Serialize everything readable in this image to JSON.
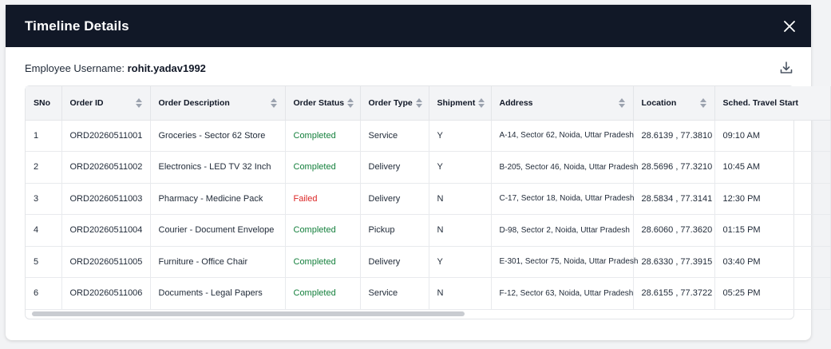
{
  "modal": {
    "title": "Timeline Details"
  },
  "employee": {
    "label": "Employee Username:",
    "username": "rohit.yadav1992"
  },
  "icons": {
    "close": "close-icon",
    "download": "download-icon",
    "sort": "sort-icon"
  },
  "colors": {
    "header_bg": "#111827",
    "completed": "#15803d",
    "failed": "#dc2626"
  },
  "table": {
    "columns": [
      {
        "label": "SNo",
        "sortable": false
      },
      {
        "label": "Order ID",
        "sortable": true
      },
      {
        "label": "Order Description",
        "sortable": true
      },
      {
        "label": "Order Status",
        "sortable": true
      },
      {
        "label": "Order Type",
        "sortable": true
      },
      {
        "label": "Shipment",
        "sortable": true
      },
      {
        "label": "Address",
        "sortable": true
      },
      {
        "label": "Location",
        "sortable": true
      },
      {
        "label": "Sched. Travel Start",
        "sortable": false
      }
    ],
    "rows": [
      {
        "sno": "1",
        "order_id": "ORD20260511001",
        "description": "Groceries - Sector 62 Store",
        "status": "Completed",
        "type": "Service",
        "shipment": "Y",
        "address": "A-14, Sector 62, Noida, Uttar Pradesh",
        "location": "28.6139 , 77.3810",
        "travel_start": "09:10 AM"
      },
      {
        "sno": "2",
        "order_id": "ORD20260511002",
        "description": "Electronics - LED TV 32 Inch",
        "status": "Completed",
        "type": "Delivery",
        "shipment": "Y",
        "address": "B-205, Sector 46, Noida, Uttar Pradesh",
        "location": "28.5696 , 77.3210",
        "travel_start": "10:45 AM"
      },
      {
        "sno": "3",
        "order_id": "ORD20260511003",
        "description": "Pharmacy - Medicine Pack",
        "status": "Failed",
        "type": "Delivery",
        "shipment": "N",
        "address": "C-17, Sector 18, Noida, Uttar Pradesh",
        "location": "28.5834 , 77.3141",
        "travel_start": "12:30 PM"
      },
      {
        "sno": "4",
        "order_id": "ORD20260511004",
        "description": "Courier - Document Envelope",
        "status": "Completed",
        "type": "Pickup",
        "shipment": "N",
        "address": "D-98, Sector 2, Noida, Uttar Pradesh",
        "location": "28.6060 , 77.3620",
        "travel_start": "01:15 PM"
      },
      {
        "sno": "5",
        "order_id": "ORD20260511005",
        "description": "Furniture - Office Chair",
        "status": "Completed",
        "type": "Delivery",
        "shipment": "Y",
        "address": "E-301, Sector 75, Noida, Uttar Pradesh",
        "location": "28.6330 , 77.3915",
        "travel_start": "03:40 PM"
      },
      {
        "sno": "6",
        "order_id": "ORD20260511006",
        "description": "Documents - Legal Papers",
        "status": "Completed",
        "type": "Service",
        "shipment": "N",
        "address": "F-12, Sector 63, Noida, Uttar Pradesh",
        "location": "28.6155 , 77.3722",
        "travel_start": "05:25 PM"
      }
    ]
  }
}
